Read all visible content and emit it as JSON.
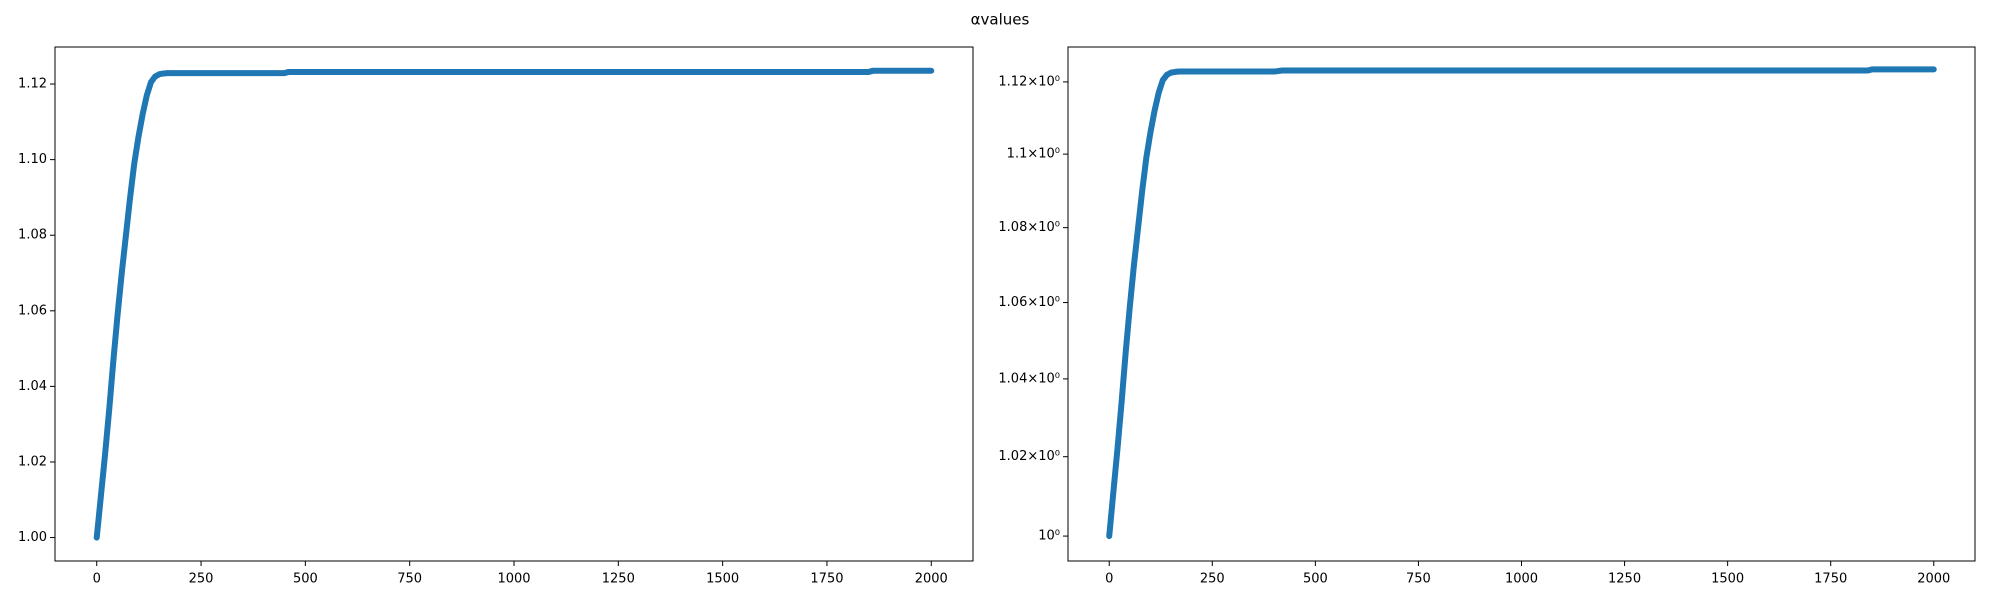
{
  "title": "αvalues",
  "chart_data": [
    {
      "type": "line",
      "yscale": "linear",
      "x": [
        0,
        10,
        20,
        30,
        40,
        50,
        60,
        70,
        80,
        90,
        100,
        110,
        120,
        130,
        140,
        150,
        160,
        170,
        180,
        190,
        200,
        250,
        300,
        350,
        400,
        450,
        460,
        500,
        550,
        600,
        650,
        700,
        750,
        800,
        850,
        900,
        950,
        1000,
        1050,
        1100,
        1150,
        1200,
        1250,
        1300,
        1350,
        1400,
        1450,
        1500,
        1550,
        1600,
        1650,
        1700,
        1750,
        1800,
        1850,
        1860,
        1900,
        1950,
        2000
      ],
      "series": [
        {
          "color": "#1f77b4",
          "values": [
            1.0,
            1.011,
            1.022,
            1.034,
            1.047,
            1.059,
            1.07,
            1.08,
            1.09,
            1.099,
            1.106,
            1.112,
            1.117,
            1.1205,
            1.122,
            1.1226,
            1.1228,
            1.1229,
            1.1229,
            1.1229,
            1.1229,
            1.1229,
            1.1229,
            1.1229,
            1.1229,
            1.1229,
            1.1232,
            1.1232,
            1.1232,
            1.1232,
            1.1232,
            1.1232,
            1.1232,
            1.1232,
            1.1232,
            1.1232,
            1.1232,
            1.1232,
            1.1232,
            1.1232,
            1.1232,
            1.1232,
            1.1232,
            1.1232,
            1.1232,
            1.1232,
            1.1232,
            1.1232,
            1.1232,
            1.1232,
            1.1232,
            1.1232,
            1.1232,
            1.1232,
            1.1232,
            1.1235,
            1.1235,
            1.1235,
            1.1235
          ]
        }
      ],
      "xlim": [
        -100,
        2100
      ],
      "xticks": [
        0,
        250,
        500,
        750,
        1000,
        1250,
        1500,
        1750,
        2000
      ],
      "ylim": [
        0.9938,
        1.1298
      ],
      "yticks": [
        {
          "value": 1.0,
          "label": "1.00"
        },
        1.02,
        1.04,
        1.06,
        1.08,
        {
          "value": 1.1,
          "label": "1.10"
        },
        1.12
      ]
    },
    {
      "type": "line",
      "yscale": "log",
      "x": [
        0,
        10,
        20,
        30,
        40,
        50,
        60,
        70,
        80,
        90,
        100,
        110,
        120,
        130,
        140,
        150,
        160,
        170,
        180,
        190,
        200,
        250,
        300,
        350,
        400,
        420,
        450,
        500,
        550,
        600,
        650,
        700,
        750,
        800,
        850,
        900,
        950,
        1000,
        1050,
        1100,
        1150,
        1200,
        1250,
        1300,
        1350,
        1400,
        1450,
        1500,
        1550,
        1600,
        1650,
        1700,
        1750,
        1800,
        1840,
        1850,
        1900,
        1950,
        2000
      ],
      "series": [
        {
          "color": "#1f77b4",
          "values": [
            1.0,
            1.011,
            1.022,
            1.034,
            1.047,
            1.059,
            1.07,
            1.08,
            1.09,
            1.099,
            1.106,
            1.112,
            1.117,
            1.1205,
            1.122,
            1.1226,
            1.1228,
            1.1229,
            1.1229,
            1.1229,
            1.1229,
            1.1229,
            1.1229,
            1.1229,
            1.1229,
            1.1232,
            1.1232,
            1.1232,
            1.1232,
            1.1232,
            1.1232,
            1.1232,
            1.1232,
            1.1232,
            1.1232,
            1.1232,
            1.1232,
            1.1232,
            1.1232,
            1.1232,
            1.1232,
            1.1232,
            1.1232,
            1.1232,
            1.1232,
            1.1232,
            1.1232,
            1.1232,
            1.1232,
            1.1232,
            1.1232,
            1.1232,
            1.1232,
            1.1232,
            1.1232,
            1.1235,
            1.1235,
            1.1235,
            1.1235
          ]
        }
      ],
      "xlim": [
        -100,
        2100
      ],
      "xticks": [
        0,
        250,
        500,
        750,
        1000,
        1250,
        1500,
        1750,
        2000
      ],
      "ylim": [
        0.9938,
        1.1298
      ],
      "yticks": [
        {
          "value": 1.0,
          "label": "10⁰"
        },
        {
          "value": 1.02,
          "label": "1.02×10⁰"
        },
        {
          "value": 1.04,
          "label": "1.04×10⁰"
        },
        {
          "value": 1.06,
          "label": "1.06×10⁰"
        },
        {
          "value": 1.08,
          "label": "1.08×10⁰"
        },
        {
          "value": 1.1,
          "label": "1.1×10⁰"
        },
        {
          "value": 1.12,
          "label": "1.12×10⁰"
        }
      ]
    }
  ]
}
